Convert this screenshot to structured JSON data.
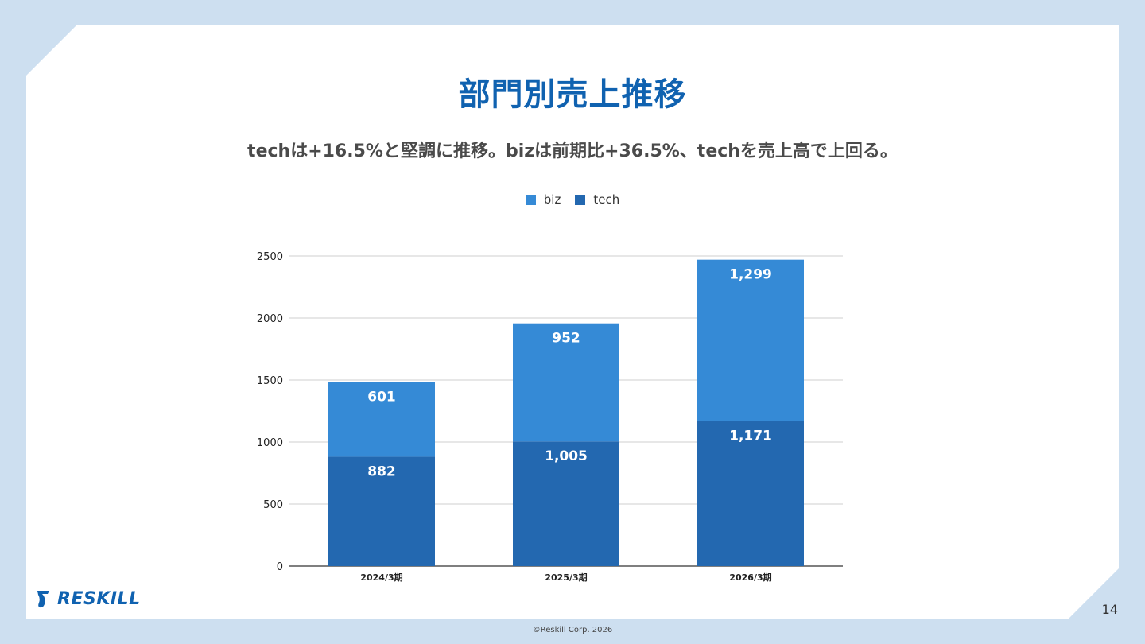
{
  "slide": {
    "title": "部門別売上推移",
    "subtitle": "techは+16.5%と堅調に推移。bizは前期比+36.5%、techを売上高で上回る。",
    "page_number": "14",
    "footer": "©Reskill Corp. 2026",
    "logo_text": "RESKILL"
  },
  "colors": {
    "biz": "#358ad6",
    "tech": "#2368b0",
    "title": "#1062b0"
  },
  "chart_data": {
    "type": "bar",
    "stacked": true,
    "categories": [
      "2024/3期",
      "2025/3期",
      "2026/3期"
    ],
    "series": [
      {
        "name": "tech",
        "values": [
          882,
          1005,
          1171
        ],
        "labels": [
          "882",
          "1,005",
          "1,171"
        ]
      },
      {
        "name": "biz",
        "values": [
          601,
          952,
          1299
        ],
        "labels": [
          "601",
          "952",
          "1,299"
        ]
      }
    ],
    "legend": [
      "biz",
      "tech"
    ],
    "legend_position": "top",
    "ylim": [
      0,
      2500
    ],
    "yticks": [
      "0",
      "500",
      "1000",
      "1500",
      "2000",
      "2500"
    ],
    "grid": true
  }
}
